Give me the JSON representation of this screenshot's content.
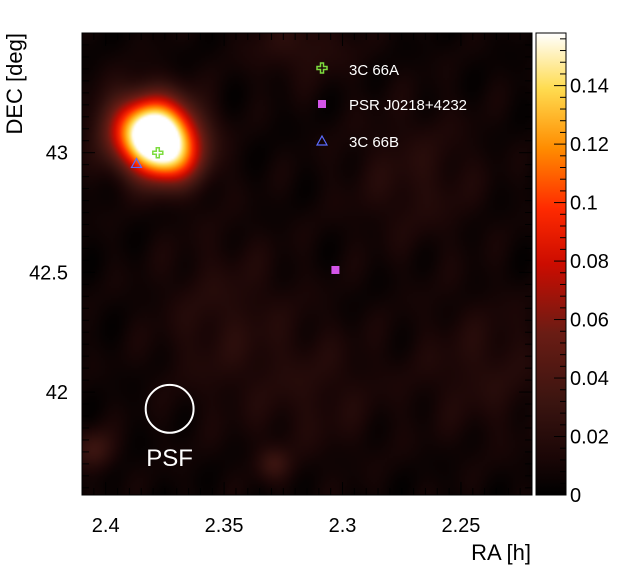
{
  "chart_data": {
    "type": "heatmap",
    "xlabel": "RA [h]",
    "ylabel": "DEC [deg]",
    "xlim": [
      2.41,
      2.22
    ],
    "ylim": [
      41.57,
      43.5
    ],
    "x_ticks": [
      "2.4",
      "2.35",
      "2.3",
      "2.25"
    ],
    "x_tick_values": [
      2.4,
      2.35,
      2.3,
      2.25
    ],
    "y_ticks": [
      "42",
      "42.5",
      "43"
    ],
    "y_tick_values": [
      42.0,
      42.5,
      43.0
    ],
    "colorbar": {
      "range": [
        0,
        0.158
      ],
      "ticks": [
        "0",
        "0.02",
        "0.04",
        "0.06",
        "0.08",
        "0.1",
        "0.12",
        "0.14"
      ],
      "tick_values": [
        0,
        0.02,
        0.04,
        0.06,
        0.08,
        0.1,
        0.12,
        0.14
      ]
    },
    "emission_peaks": [
      {
        "ra": 2.378,
        "dec": 43.06,
        "value": 0.15,
        "sigma_ra": 0.011,
        "sigma_dec": 0.1
      },
      {
        "ra": 2.384,
        "dec": 43.12,
        "value": 0.06,
        "sigma_ra": 0.012,
        "sigma_dec": 0.1
      },
      {
        "ra": 2.372,
        "dec": 42.96,
        "value": 0.05,
        "sigma_ra": 0.01,
        "sigma_dec": 0.08
      },
      {
        "ra": 2.405,
        "dec": 41.76,
        "value": 0.025,
        "sigma_ra": 0.006,
        "sigma_dec": 0.06
      },
      {
        "ra": 2.329,
        "dec": 41.7,
        "value": 0.02,
        "sigma_ra": 0.005,
        "sigma_dec": 0.05
      },
      {
        "ra": 2.318,
        "dec": 43.45,
        "value": 0.015,
        "sigma_ra": 0.015,
        "sigma_dec": 0.1
      },
      {
        "ra": 2.35,
        "dec": 42.3,
        "value": 0.012,
        "sigma_ra": 0.02,
        "sigma_dec": 0.25
      },
      {
        "ra": 2.27,
        "dec": 42.9,
        "value": 0.012,
        "sigma_ra": 0.02,
        "sigma_dec": 0.2
      },
      {
        "ra": 2.24,
        "dec": 42.1,
        "value": 0.012,
        "sigma_ra": 0.02,
        "sigma_dec": 0.2
      },
      {
        "ra": 2.31,
        "dec": 42.0,
        "value": 0.01,
        "sigma_ra": 0.02,
        "sigma_dec": 0.2
      }
    ],
    "markers": [
      {
        "name": "3C 66A",
        "ra": 2.378,
        "dec": 43.0,
        "symbol": "cross",
        "color": "#7ddc3e"
      },
      {
        "name": "PSR J0218+4232",
        "ra": 2.303,
        "dec": 42.51,
        "symbol": "square",
        "color": "#d455e8"
      },
      {
        "name": "3C 66B",
        "ra": 2.387,
        "dec": 42.955,
        "symbol": "triangle",
        "color": "#5a6cff"
      }
    ],
    "psf": {
      "label": "PSF",
      "ra": 2.373,
      "dec": 41.93,
      "radius_deg": 0.1
    }
  }
}
